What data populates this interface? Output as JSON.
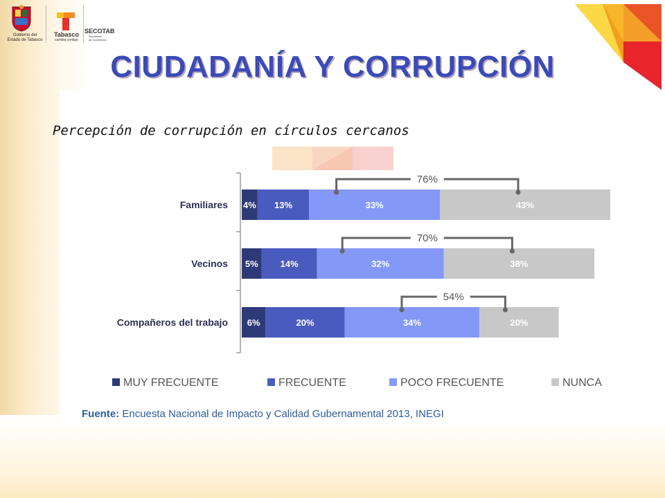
{
  "header": {
    "gov_caption_line1": "Gobierno del",
    "gov_caption_line2": "Estado de Tabasco",
    "tabasco_name": "Tabasco",
    "tabasco_tagline": "cambia contigo",
    "secotab_name": "SECOTAB",
    "secotab_line1": "Secretaría",
    "secotab_line2": "de Contraloría"
  },
  "title": "CIUDADANÍA Y CORRUPCIÓN",
  "subtitle": "Percepción de corrupción en círculos cercanos",
  "source": {
    "label": "Fuente:",
    "text": "Encuesta Nacional de Impacto y Calidad Gubernamental 2013, INEGI"
  },
  "colors": {
    "muy_frecuente": "#2e3a78",
    "frecuente": "#4a5bbf",
    "poco_frecuente": "#8398f7",
    "nunca": "#c8c8c8",
    "title": "#3a4bb8",
    "source": "#2e5c9a"
  },
  "chart_data": {
    "type": "bar",
    "orientation": "horizontal",
    "stacked": true,
    "categories": [
      "Familiares",
      "Vecinos",
      "Compañeros del trabajo"
    ],
    "series": [
      {
        "name": "MUY FRECUENTE",
        "values": [
          4,
          5,
          6
        ],
        "labels": [
          "4%",
          "5%",
          "6%"
        ],
        "color": "#2e3a78"
      },
      {
        "name": "FRECUENTE",
        "values": [
          13,
          14,
          20
        ],
        "labels": [
          "13%",
          "14%",
          "20%"
        ],
        "color": "#4a5bbf"
      },
      {
        "name": "POCO FRECUENTE",
        "values": [
          33,
          32,
          34
        ],
        "labels": [
          "33%",
          "32%",
          "34%"
        ],
        "color": "#8398f7"
      },
      {
        "name": "NUNCA",
        "values": [
          43,
          38,
          20
        ],
        "labels": [
          "43%",
          "38%",
          "20%"
        ],
        "color": "#c8c8c8"
      }
    ],
    "annotations": [
      "76%",
      "70%",
      "54%"
    ],
    "annotation_values": [
      76,
      70,
      54
    ],
    "legend_position": "bottom",
    "grid": false
  }
}
